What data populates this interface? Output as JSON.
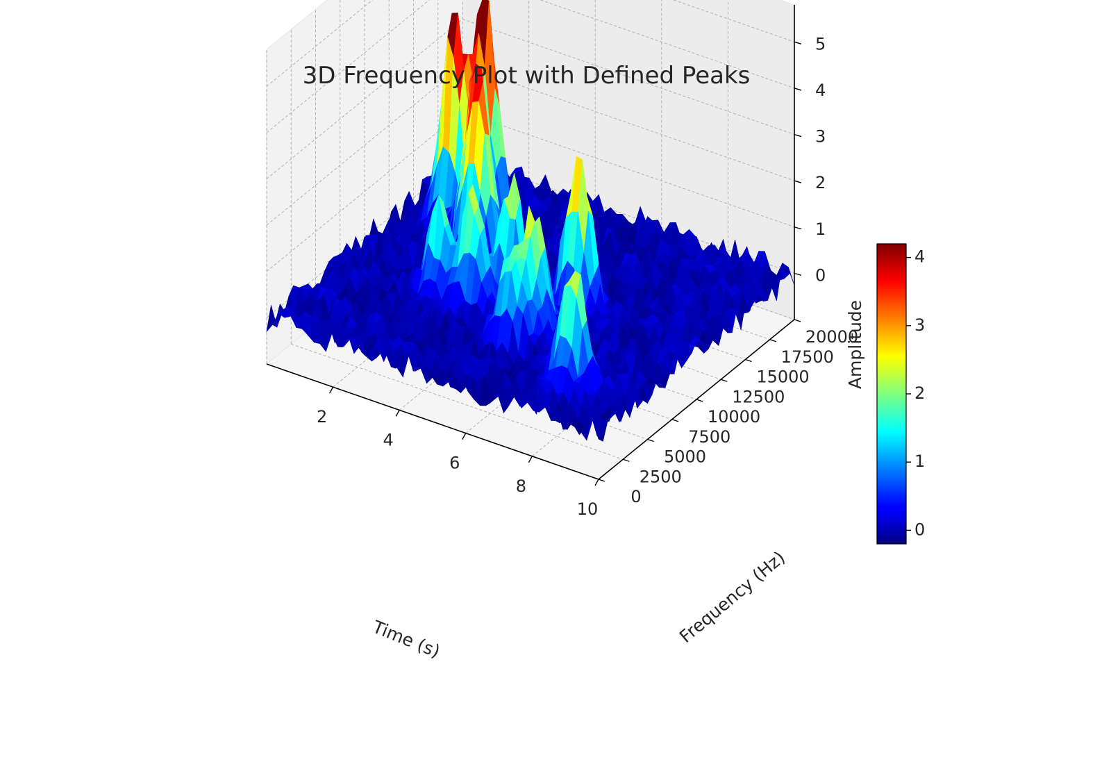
{
  "chart_data": {
    "type": "surface3d",
    "title": "3D Frequency Plot with Defined Peaks",
    "xlabel": "Time (s)",
    "ylabel": "Frequency (Hz)",
    "zlabel": "Amplitude",
    "xlim": [
      0,
      10
    ],
    "ylim": [
      0,
      20000
    ],
    "zlim": [
      -1,
      5.8
    ],
    "x_ticks": [
      "2",
      "4",
      "6",
      "8",
      "10"
    ],
    "y_ticks": [
      "0",
      "2500",
      "5000",
      "7500",
      "10000",
      "12500",
      "15000",
      "17500",
      "20000"
    ],
    "z_ticks": [
      "0",
      "1",
      "2",
      "3",
      "4",
      "5"
    ],
    "colorbar": {
      "label": "Amplitude",
      "range": [
        -0.2,
        4.2
      ],
      "ticks": [
        "0",
        "1",
        "2",
        "3",
        "4"
      ],
      "colormap": "jet"
    },
    "grid": true,
    "noise_amplitude": 0.3,
    "peaks": [
      {
        "time": 1.5,
        "frequency": 14000,
        "amplitude": 4.6
      },
      {
        "time": 2.0,
        "frequency": 15500,
        "amplitude": 4.9
      },
      {
        "time": 2.6,
        "frequency": 12500,
        "amplitude": 3.2
      },
      {
        "time": 3.0,
        "frequency": 11500,
        "amplitude": 3.6
      },
      {
        "time": 3.0,
        "frequency": 7500,
        "amplitude": 2.0
      },
      {
        "time": 4.0,
        "frequency": 7500,
        "amplitude": 2.4
      },
      {
        "time": 4.6,
        "frequency": 9500,
        "amplitude": 2.4
      },
      {
        "time": 5.8,
        "frequency": 5500,
        "amplitude": 1.9
      },
      {
        "time": 6.0,
        "frequency": 7000,
        "amplitude": 2.5
      },
      {
        "time": 6.3,
        "frequency": 10500,
        "amplitude": 3.3
      },
      {
        "time": 8.2,
        "frequency": 3500,
        "amplitude": 2.7
      }
    ]
  }
}
